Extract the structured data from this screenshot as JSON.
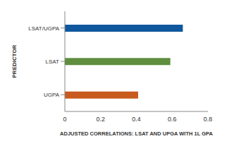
{
  "chart_data": {
    "type": "bar",
    "orientation": "horizontal",
    "categories": [
      "LSAT/UGPA",
      "LSAT",
      "UGPA"
    ],
    "values": [
      0.66,
      0.59,
      0.41
    ],
    "colors": [
      "#10589e",
      "#5e8e3e",
      "#c85a1e"
    ],
    "xlabel": "ADJUSTED CORRELATIONS: LSAT AND UPGA WITH 1L GPA",
    "ylabel": "PREDICTOR",
    "xlim": [
      0,
      0.8
    ],
    "xticks": [
      0,
      0.2,
      0.4,
      0.6,
      0.8
    ],
    "grid": false
  }
}
